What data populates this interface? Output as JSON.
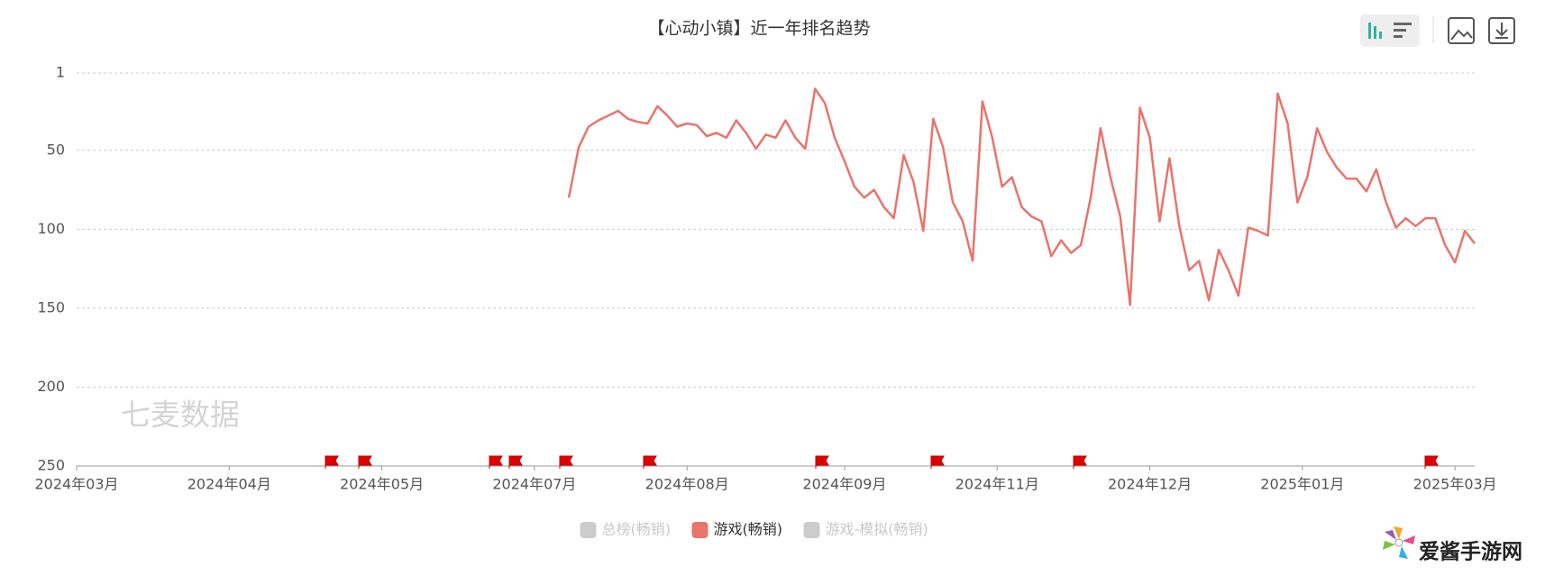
{
  "chart_data": {
    "type": "line",
    "title": "【心动小镇】近一年排名趋势",
    "watermark": "七麦数据",
    "brand": "爱酱手游网",
    "inverse": true,
    "ylim": [
      1,
      250
    ],
    "yticks": [
      1,
      50,
      100,
      150,
      200,
      250
    ],
    "grid": true,
    "xlim": [
      0,
      142
    ],
    "xticks": [
      {
        "value": 0,
        "label": "2024年03月"
      },
      {
        "value": 15.5,
        "label": "2024年04月"
      },
      {
        "value": 31,
        "label": "2024年05月"
      },
      {
        "value": 46.5,
        "label": "2024年07月"
      },
      {
        "value": 62,
        "label": "2024年08月"
      },
      {
        "value": 78,
        "label": "2024年09月"
      },
      {
        "value": 93.5,
        "label": "2024年11月"
      },
      {
        "value": 109,
        "label": "2024年12月"
      },
      {
        "value": 124.5,
        "label": "2025年01月"
      },
      {
        "value": 140,
        "label": "2025年03月"
      }
    ],
    "legend_position": "bottom",
    "series": [
      {
        "name": "总榜(畅销)",
        "color": "#cccccc",
        "visible": false
      },
      {
        "name": "游戏(畅销)",
        "color": "#e8746c",
        "visible": true,
        "values": [
          null,
          null,
          null,
          null,
          null,
          null,
          null,
          null,
          null,
          null,
          null,
          null,
          null,
          null,
          null,
          null,
          null,
          null,
          null,
          null,
          null,
          null,
          null,
          null,
          null,
          null,
          null,
          null,
          null,
          null,
          null,
          null,
          null,
          null,
          null,
          null,
          null,
          null,
          null,
          null,
          null,
          null,
          null,
          null,
          null,
          null,
          null,
          null,
          null,
          null,
          80,
          48,
          35,
          31,
          28,
          25,
          30,
          32,
          33,
          22,
          28,
          35,
          33,
          34,
          41,
          39,
          42,
          31,
          39,
          49,
          40,
          42,
          31,
          42,
          49,
          11,
          20,
          42,
          57,
          73,
          80,
          75,
          86,
          93,
          53,
          70,
          101,
          30,
          48,
          83,
          95,
          120,
          19,
          42,
          73,
          67,
          86,
          92,
          95,
          117,
          107,
          115,
          110,
          80,
          36,
          67,
          92,
          148,
          23,
          42,
          95,
          55,
          98,
          126,
          120,
          145,
          113,
          126,
          142,
          99,
          101,
          104,
          14,
          33,
          83,
          67,
          36,
          51,
          61,
          68,
          68,
          76,
          62,
          83,
          99,
          93,
          98,
          93,
          93,
          110,
          121,
          101,
          109
        ]
      },
      {
        "name": "游戏-模拟(畅销)",
        "color": "#cccccc",
        "visible": false
      }
    ]
  }
}
